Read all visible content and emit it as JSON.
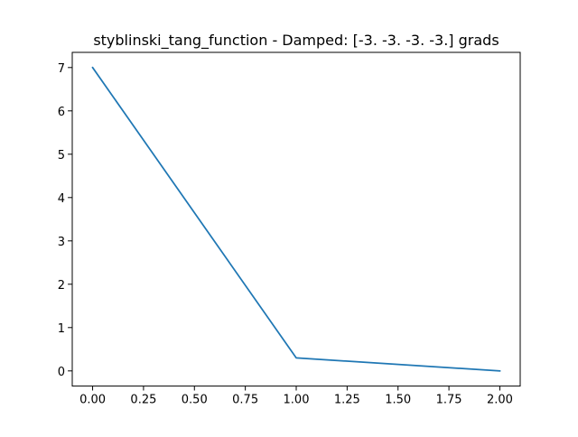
{
  "chart_data": {
    "type": "line",
    "title": "styblinski_tang_function - Damped: [-3. -3. -3. -3.] grads",
    "xlabel": "",
    "ylabel": "",
    "xlim": [
      -0.1,
      2.1
    ],
    "ylim": [
      -0.35,
      7.35
    ],
    "x_ticks": [
      0.0,
      0.25,
      0.5,
      0.75,
      1.0,
      1.25,
      1.5,
      1.75,
      2.0
    ],
    "x_tick_labels": [
      "0.00",
      "0.25",
      "0.50",
      "0.75",
      "1.00",
      "1.25",
      "1.50",
      "1.75",
      "2.00"
    ],
    "y_ticks": [
      0,
      1,
      2,
      3,
      4,
      5,
      6,
      7
    ],
    "y_tick_labels": [
      "0",
      "1",
      "2",
      "3",
      "4",
      "5",
      "6",
      "7"
    ],
    "grid": false,
    "legend": "none",
    "series": [
      {
        "color": "#1f77b4",
        "x": [
          0,
          1,
          2
        ],
        "y": [
          7.0,
          0.3,
          0.0
        ]
      }
    ]
  }
}
